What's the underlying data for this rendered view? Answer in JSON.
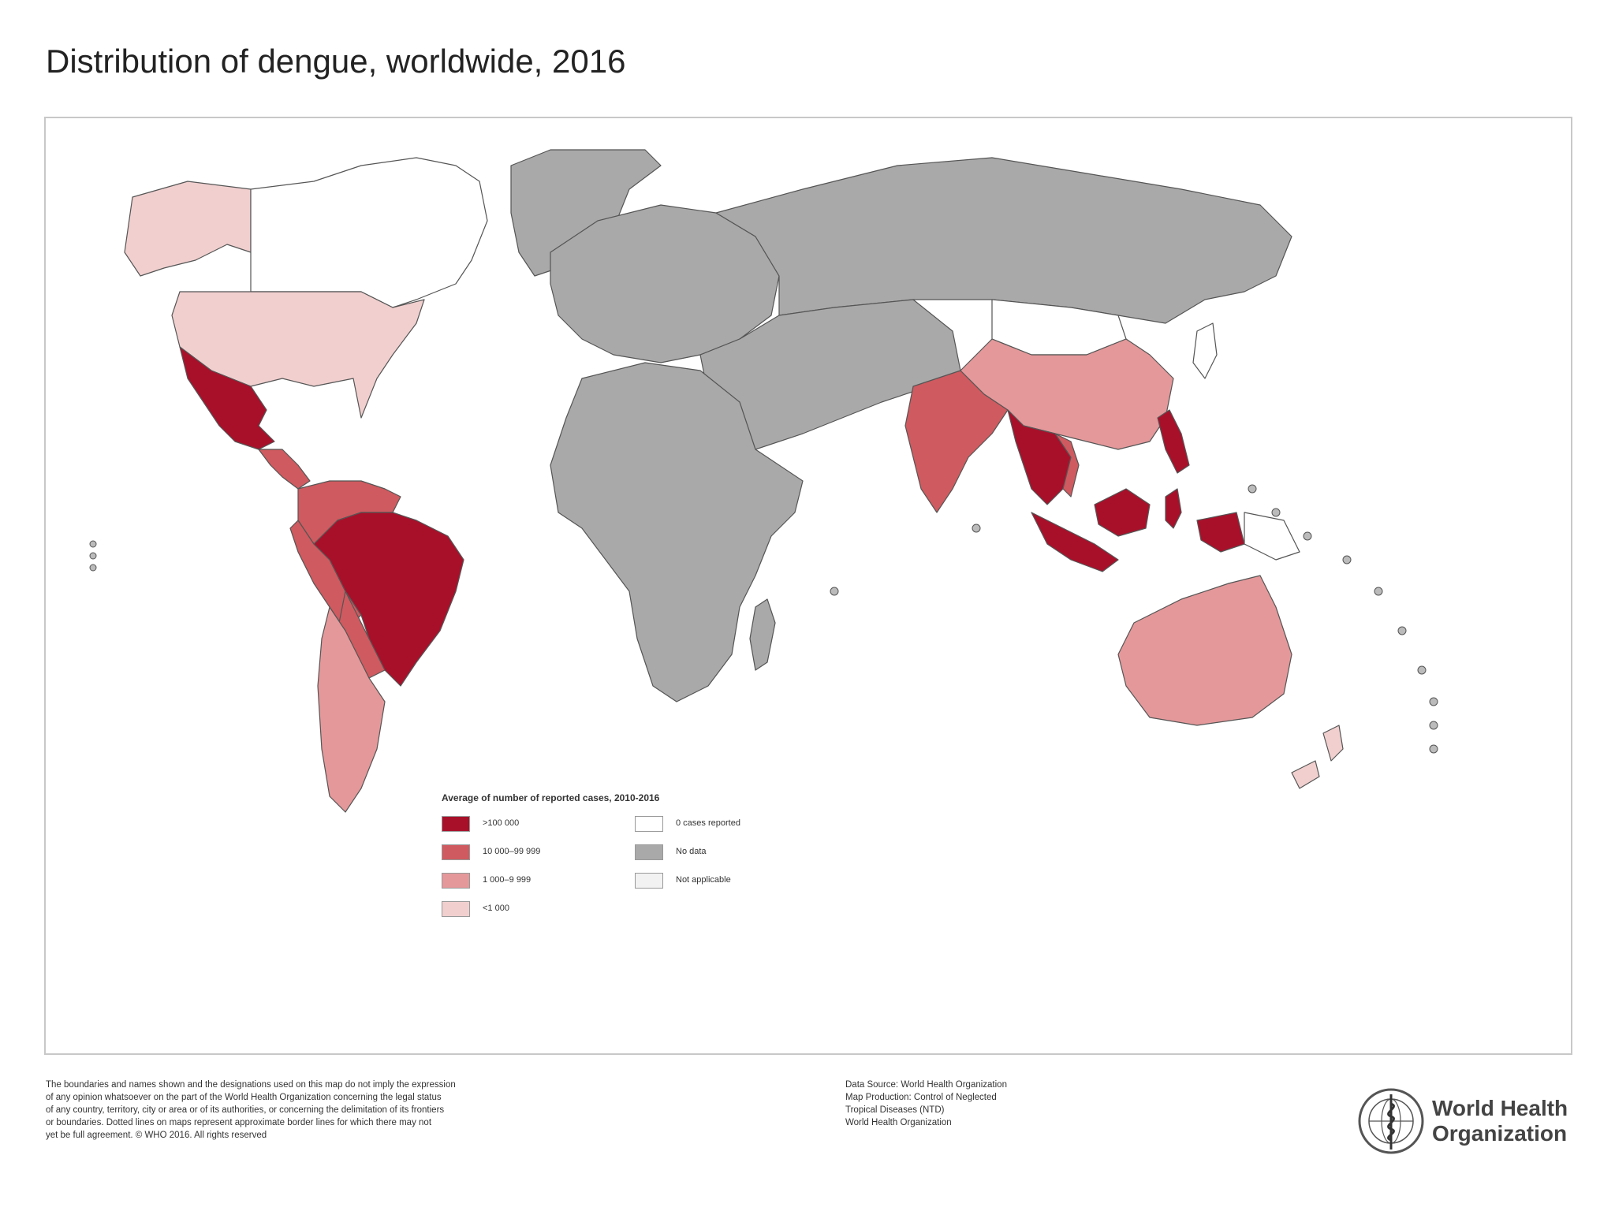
{
  "title": "Distribution of dengue, worldwide, 2016",
  "colors": {
    "over_100000": "#a8102a",
    "10000_99999": "#cf5a5f",
    "1000_9999": "#e4989a",
    "under_1000": "#f1cfcf",
    "zero_cases": "#ffffff",
    "no_data": "#a9a9a9",
    "not_applicable": "#f2f2f2",
    "border": "#555555"
  },
  "legend": {
    "title": "Average of number of reported cases, 2010-2016",
    "items": [
      {
        "label": ">100 000",
        "category": "over_100000"
      },
      {
        "label": "10 000–99 999",
        "category": "10000_99999"
      },
      {
        "label": "1 000–9 999",
        "category": "1000_9999"
      },
      {
        "label": "<1 000",
        "category": "under_1000"
      },
      {
        "label": "0 cases reported",
        "category": "zero_cases"
      },
      {
        "label": "No data",
        "category": "no_data"
      },
      {
        "label": "Not applicable",
        "category": "not_applicable"
      }
    ]
  },
  "disclaimer": [
    "The boundaries and names shown and the designations used on this map do not imply the expression",
    "of any opinion whatsoever on the part of the World Health Organization concerning the legal status",
    "of any country, territory, city or area or of its authorities, or concerning the delimitation of its frontiers",
    "or boundaries. Dotted lines on maps represent approximate border lines for which there may not",
    "yet be full agreement. © WHO 2016. All rights reserved"
  ],
  "source": [
    "Data Source: World Health Organization",
    "Map Production: Control of Neglected",
    "Tropical Diseases (NTD)",
    "World Health Organization"
  ],
  "logo": {
    "line1": "World Health",
    "line2": "Organization",
    "icon": "who-emblem-icon"
  }
}
